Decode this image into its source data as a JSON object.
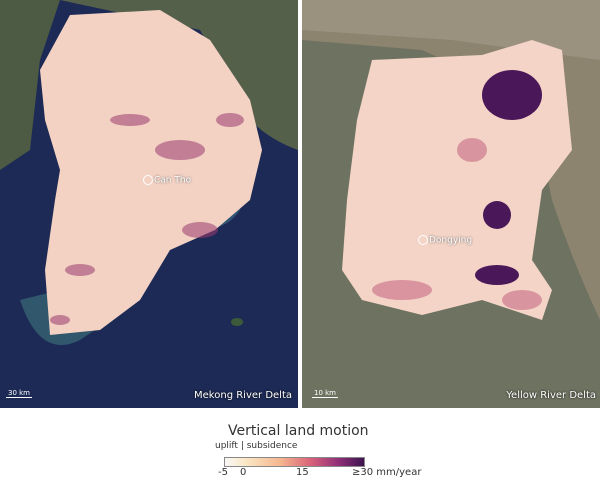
{
  "panels": [
    {
      "name": "Mekong River Delta",
      "city": "Can Tho",
      "scale": "30 km"
    },
    {
      "name": "Yellow River Delta",
      "city": "Dongying",
      "scale": "10 km"
    }
  ],
  "legend": {
    "title": "Vertical land motion",
    "subtitle": "uplift | subsidence",
    "ticks": [
      "-5",
      "0",
      "15",
      "≥30 mm/year"
    ],
    "colors": [
      "#f7f7f7",
      "#fbe9c8",
      "#f5b68e",
      "#d9607a",
      "#8e2f78",
      "#3d1450"
    ]
  }
}
